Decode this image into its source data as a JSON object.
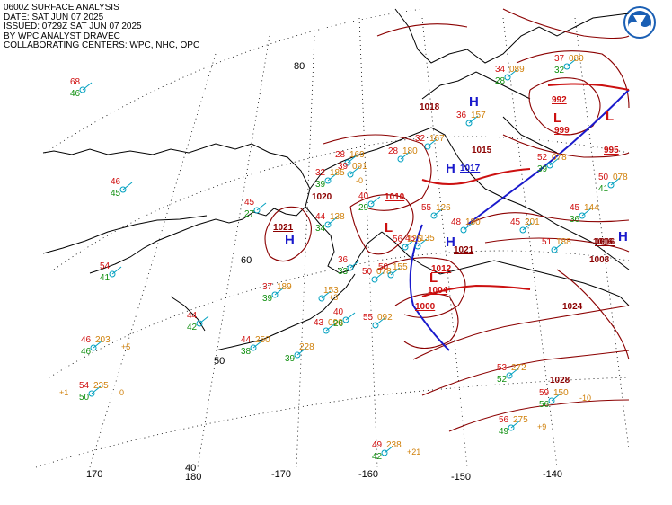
{
  "header": {
    "line1": "0600Z SURFACE ANALYSIS",
    "line2": "DATE: SAT JUN 07 2025",
    "line3": "ISSUED: 0729Z SAT JUN 07 2025",
    "line4": "BY WPC ANALYST DRAVEC",
    "line5": "COLLABORATING CENTERS: WPC, NHC, OPC"
  },
  "logo": {
    "icon": "noaa-logo-icon",
    "color": "#1a5fb4"
  },
  "colors": {
    "coast": "#000000",
    "isobar": "#8b0000",
    "temperature": "#d01010",
    "dewpoint": "#109010",
    "pressure_value": "#d0800a",
    "high": "#1a1acc",
    "low": "#cc1010",
    "cold_front": "#1a1acc",
    "warm_front": "#cc1010",
    "station": "#00a0c0",
    "graticule": "#000000"
  },
  "graticule": {
    "latitudes": [
      "80",
      "60",
      "50"
    ],
    "longitudes": [
      "170",
      "180",
      "-170",
      "-160",
      "-150",
      "-140"
    ],
    "extra_label": "40"
  },
  "centers": [
    {
      "type": "H",
      "value": "1021"
    },
    {
      "type": "H",
      "value": "1018"
    },
    {
      "type": "H",
      "value": "1017"
    },
    {
      "type": "H",
      "value": "1021"
    },
    {
      "type": "H",
      "value": "1016"
    },
    {
      "type": "L",
      "value": "1010"
    },
    {
      "type": "L",
      "value": "1012"
    },
    {
      "type": "L",
      "value": "1004"
    },
    {
      "type": "L",
      "value": "1000"
    },
    {
      "type": "L",
      "value": "999"
    },
    {
      "type": "L",
      "value": "995"
    },
    {
      "type": "L",
      "value": "992"
    }
  ],
  "isobar_labels": [
    "1020",
    "1015",
    "1024",
    "1028",
    "1008",
    "1016"
  ],
  "stations": [
    {
      "t": "68",
      "d": "46",
      "p": ""
    },
    {
      "t": "46",
      "d": "45",
      "p": ""
    },
    {
      "t": "45",
      "d": "27",
      "p": ""
    },
    {
      "t": "54",
      "d": "41",
      "p": ""
    },
    {
      "t": "46",
      "d": "46",
      "p": "203"
    },
    {
      "t": "54",
      "d": "50",
      "p": "235"
    },
    {
      "t": "44",
      "d": "42",
      "p": ""
    },
    {
      "t": "44",
      "d": "38",
      "p": "250"
    },
    {
      "t": "",
      "d": "39",
      "p": "228"
    },
    {
      "t": "37",
      "d": "39",
      "p": "189"
    },
    {
      "t": "",
      "d": "",
      "p": "153"
    },
    {
      "t": "43",
      "d": "",
      "p": "090"
    },
    {
      "t": "40",
      "d": "26",
      "p": ""
    },
    {
      "t": "50",
      "d": "",
      "p": "078"
    },
    {
      "t": "56",
      "d": "",
      "p": "125"
    },
    {
      "t": "55",
      "d": "",
      "p": "126"
    },
    {
      "t": "48",
      "d": "",
      "p": "180"
    },
    {
      "t": "45",
      "d": "",
      "p": "201"
    },
    {
      "t": "51",
      "d": "",
      "p": "188"
    },
    {
      "t": "45",
      "d": "36",
      "p": "144"
    },
    {
      "t": "50",
      "d": "41",
      "p": "078"
    },
    {
      "t": "53",
      "d": "52",
      "p": "272"
    },
    {
      "t": "59",
      "d": "56",
      "p": "150"
    },
    {
      "t": "56",
      "d": "49",
      "p": "275"
    },
    {
      "t": "49",
      "d": "42",
      "p": "238"
    },
    {
      "t": "52",
      "d": "39",
      "p": "078"
    },
    {
      "t": "37",
      "d": "32",
      "p": "080"
    },
    {
      "t": "34",
      "d": "28",
      "p": "089"
    },
    {
      "t": "36",
      "d": "",
      "p": "157"
    },
    {
      "t": "32",
      "d": "",
      "p": "167"
    },
    {
      "t": "28",
      "d": "",
      "p": "180"
    },
    {
      "t": "28",
      "d": "",
      "p": "169"
    },
    {
      "t": "32",
      "d": "39",
      "p": "185"
    },
    {
      "t": "44",
      "d": "34",
      "p": "138"
    },
    {
      "t": "36",
      "d": "33",
      "p": ""
    },
    {
      "t": "40",
      "d": "29",
      "p": ""
    },
    {
      "t": "50",
      "d": "",
      "p": "155"
    },
    {
      "t": "45",
      "d": "",
      "p": "135"
    },
    {
      "t": "55",
      "d": "",
      "p": "092"
    },
    {
      "t": "39",
      "d": "",
      "p": "091"
    }
  ],
  "tendencies": [
    "+5",
    "+1",
    "0",
    "+3",
    "-0",
    "+21",
    "+9",
    "-10"
  ]
}
